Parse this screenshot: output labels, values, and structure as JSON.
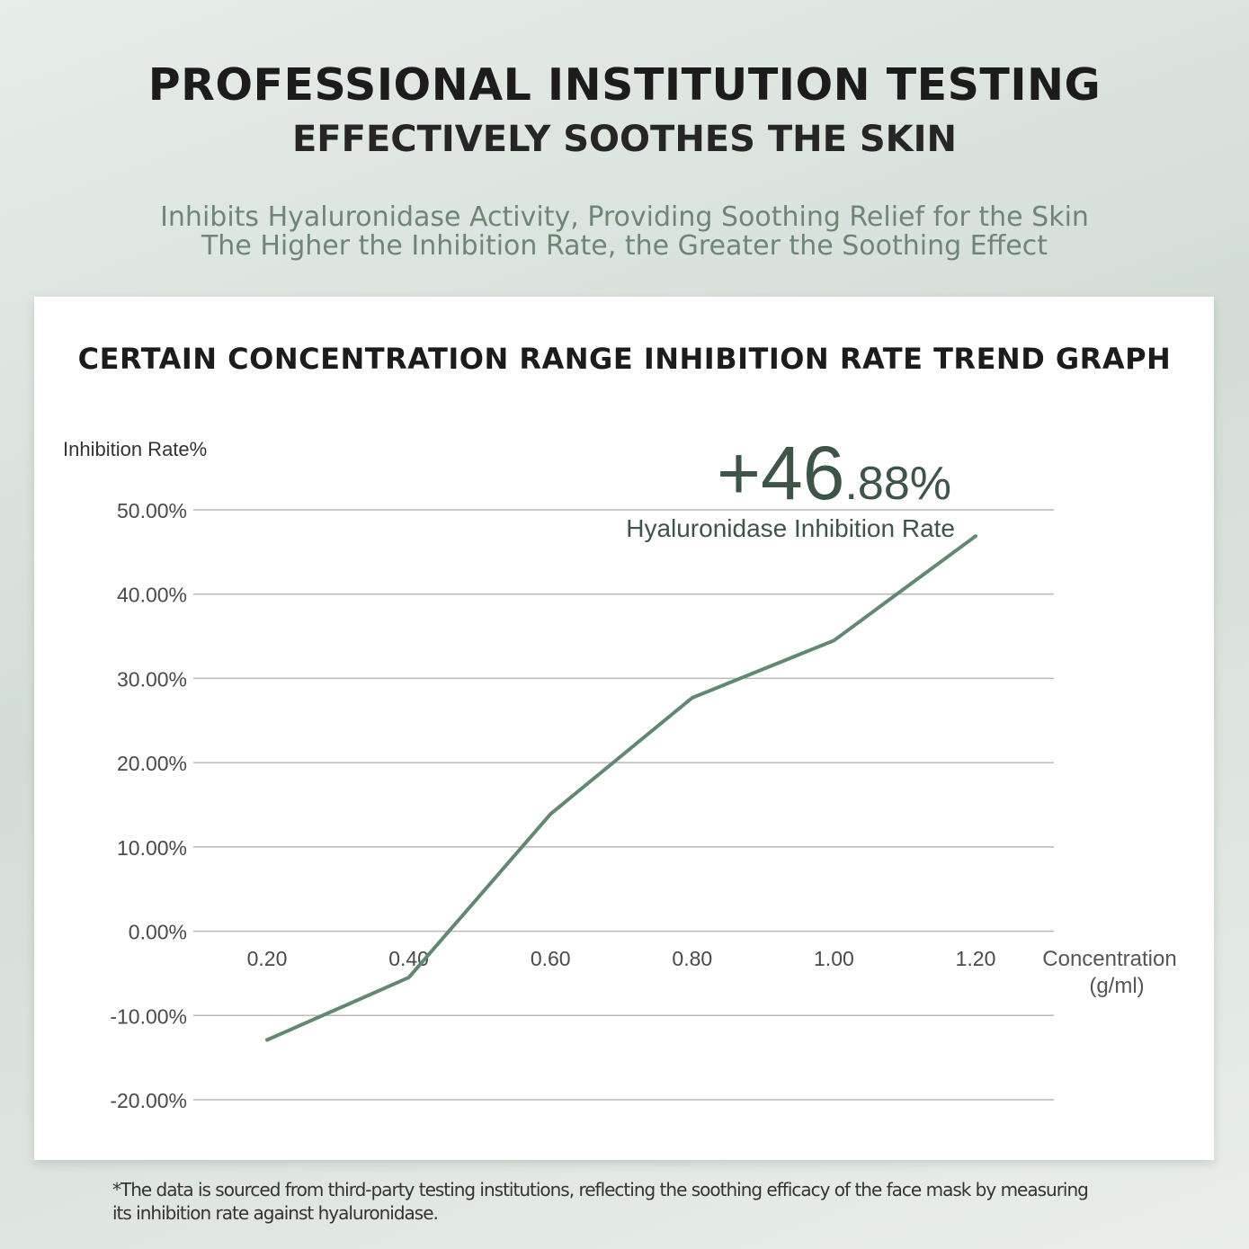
{
  "header": {
    "title": "PROFESSIONAL INSTITUTION TESTING",
    "subtitle": "EFFECTIVELY SOOTHES THE SKIN",
    "tagline_1": "Inhibits Hyaluronidase Activity, Providing Soothing Relief for the Skin",
    "tagline_2": "The Higher the Inhibition Rate, the Greater the Soothing Effect"
  },
  "chart_data": {
    "type": "line",
    "title": "CERTAIN CONCENTRATION RANGE INHIBITION RATE TREND GRAPH",
    "ylabel": "Inhibition Rate%",
    "xlabel_line1": "Concentration",
    "xlabel_line2": "(g/ml)",
    "x": [
      0.2,
      0.4,
      0.6,
      0.8,
      1.0,
      1.2
    ],
    "x_tick_labels": [
      "0.20",
      "0.40",
      "0.60",
      "0.80",
      "1.00",
      "1.20"
    ],
    "y": [
      -12.9,
      -5.5,
      13.9,
      27.7,
      34.5,
      46.88
    ],
    "ylim": [
      -20,
      50
    ],
    "y_ticks": [
      50,
      40,
      30,
      20,
      10,
      0,
      -10,
      -20
    ],
    "y_tick_labels": [
      "50.00%",
      "40.00%",
      "30.00%",
      "20.00%",
      "10.00%",
      "0.00%",
      "-10.00%",
      "-20.00%"
    ],
    "grid": true,
    "line_color": "#5f8a70",
    "callout": {
      "value_main": "+46",
      "value_decimal": ".88%",
      "label": "Hyaluronidase Inhibition Rate"
    }
  },
  "footnote": {
    "line_1": "*The data is sourced from third-party testing institutions, reflecting the soothing efficacy of the face mask by measuring",
    "line_2": "its inhibition rate against hyaluronidase."
  }
}
